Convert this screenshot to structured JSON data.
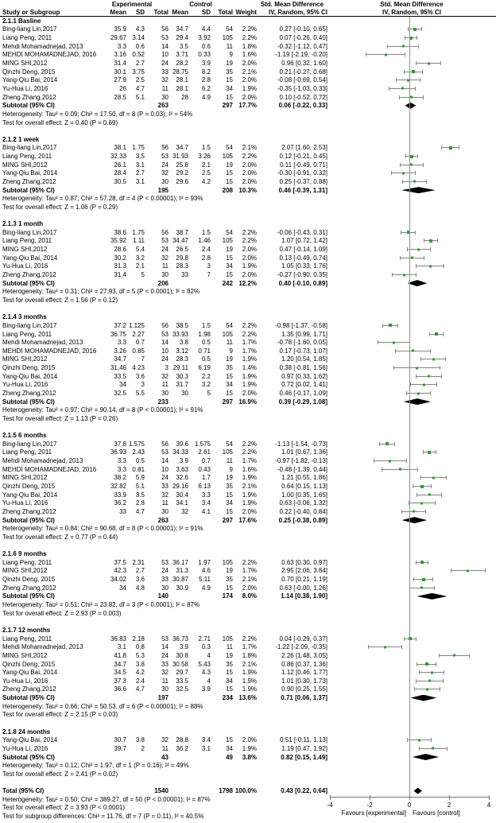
{
  "header": {
    "study": "Study or Subgroup",
    "experimental": "Experimental",
    "control": "Control",
    "mean": "Mean",
    "sd": "SD",
    "total": "Total",
    "weight": "Weight",
    "smd": "Std. Mean Difference",
    "iv_random": "IV, Random, 95% CI"
  },
  "colors": {
    "marker": "#2e9b2e",
    "ci_line": "#848484",
    "diamond": "#000000",
    "zero_line": "#909090",
    "axis": "#737373"
  },
  "chart_data": {
    "type": "forest",
    "effect_measure": "Std. Mean Difference, IV, Random, 95% CI",
    "columns": [
      "study",
      "exp_mean",
      "exp_sd",
      "exp_total",
      "ctl_mean",
      "ctl_sd",
      "ctl_total",
      "weight",
      "smd_ci"
    ],
    "axis": {
      "xlim": [
        -4,
        4
      ],
      "ticks": [
        "-4",
        "-2",
        "0",
        "2",
        "4"
      ],
      "favours_left": "Favours [experimental]",
      "favours_right": "Favours [control]"
    },
    "sections": [
      {
        "label": "2.1.1 Basline",
        "studies": [
          [
            "Bing-liang Lin,2017",
            "35.9",
            "4.3",
            "56",
            "34.7",
            "4.4",
            "54",
            "2.2%",
            "0.27 [-0.10, 0.65]"
          ],
          [
            "Liang Peng, 2011",
            "29.67",
            "3.14",
            "53",
            "29.4",
            "3.92",
            "105",
            "2.2%",
            "0.07 [-0.26, 0.40]"
          ],
          [
            "Mehdi Mohamadnejad, 2013",
            "3.3",
            "0.6",
            "14",
            "3.5",
            "0.6",
            "11",
            "1.8%",
            "-0.32 [-1.12, 0.47]"
          ],
          [
            "MEHDI MOHAMADNEJAD, 2016",
            "3.16",
            "0.52",
            "10",
            "3.71",
            "0.33",
            "9",
            "1.6%",
            "-1.19 [-2.19, -0.20]"
          ],
          [
            "MING SHI,2012",
            "31.4",
            "2.7",
            "24",
            "28.2",
            "3.9",
            "19",
            "2.0%",
            "0.96 [0.32, 1.60]"
          ],
          [
            "Qinzhi Deng, 2015",
            "30.1",
            "3.75",
            "33",
            "28.75",
            "8.2",
            "35",
            "2.1%",
            "0.21 [-0.27, 0.68]"
          ],
          [
            "Yang-Qiu Bai, 2014",
            "27.9",
            "2.5",
            "32",
            "28.1",
            "2.8",
            "15",
            "2.0%",
            "-0.08 [-0.69, 0.54]"
          ],
          [
            "Yu-Hua Li, 2016",
            "26",
            "4.7",
            "11",
            "28.1",
            "6.2",
            "34",
            "1.9%",
            "-0.35 [-1.03, 0.33]"
          ],
          [
            "Zheng Zhang,2012",
            "28.5",
            "5.1",
            "30",
            "28",
            "4.9",
            "15",
            "2.0%",
            "0.10 [-0.52, 0.72]"
          ]
        ],
        "subtotal": {
          "label": "Subtotal (95% CI)",
          "exp_total": "263",
          "ctl_total": "297",
          "weight": "17.7%",
          "ci": "0.06 [-0.22, 0.33]"
        },
        "heterogeneity": "Heterogeneity: Tau² = 0.09; Chi² = 17.50, df = 8 (P = 0.03); I² = 54%",
        "overall": "Test for overall effect: Z = 0.40 (P = 0.69)"
      },
      {
        "label": "2.1.2 1 week",
        "studies": [
          [
            "Bing-liang Lin,2017",
            "38.1",
            "1.75",
            "56",
            "34.7",
            "1.5",
            "54",
            "2.1%",
            "2.07 [1.60, 2.53]"
          ],
          [
            "Liang Peng, 2011",
            "32.33",
            "3.5",
            "53",
            "31.93",
            "3.26",
            "105",
            "2.2%",
            "0.12 [-0.21, 0.45]"
          ],
          [
            "MING SHI,2012",
            "26.1",
            "3.1",
            "24",
            "25.8",
            "2.1",
            "19",
            "2.0%",
            "0.11 [-0.49, 0.71]"
          ],
          [
            "Yang-Qiu Bai, 2014",
            "28.4",
            "2.7",
            "32",
            "29.2",
            "2.5",
            "15",
            "2.0%",
            "-0.30 [-0.91, 0.32]"
          ],
          [
            "Zheng Zhang,2012",
            "30.5",
            "3.1",
            "30",
            "29.6",
            "4.2",
            "15",
            "2.0%",
            "0.25 [-0.37, 0.88]"
          ]
        ],
        "subtotal": {
          "label": "Subtotal (95% CI)",
          "exp_total": "195",
          "ctl_total": "208",
          "weight": "10.3%",
          "ci": "0.46 [-0.39, 1.31]"
        },
        "heterogeneity": "Heterogeneity: Tau² = 0.87; Chi² = 57.28, df = 4 (P < 0.00001); I² = 93%",
        "overall": "Test for overall effect: Z = 1.06 (P = 0.29)"
      },
      {
        "label": "2.1.3 1 month",
        "studies": [
          [
            "Bing-liang Lin,2017",
            "38.6",
            "1.75",
            "56",
            "38.7",
            "1.5",
            "54",
            "2.2%",
            "-0.06 [-0.43, 0.31]"
          ],
          [
            "Liang Peng, 2011",
            "35.92",
            "1.11",
            "53",
            "34.47",
            "1.46",
            "105",
            "2.2%",
            "1.07 [0.72, 1.42]"
          ],
          [
            "MING SHI,2012",
            "28.6",
            "5.4",
            "24",
            "26.5",
            "2.4",
            "19",
            "2.0%",
            "0.47 [-0.14, 1.09]"
          ],
          [
            "Yang-Qiu Bai, 2014",
            "30.2",
            "3.2",
            "32",
            "29.8",
            "2.8",
            "15",
            "2.0%",
            "0.13 [-0.49, 0.74]"
          ],
          [
            "Yu-Hua Li, 2016",
            "31.3",
            "2.1",
            "11",
            "28.3",
            "3",
            "34",
            "1.9%",
            "1.05 [0.33, 1.76]"
          ],
          [
            "Zheng Zhang,2012",
            "31.4",
            "5",
            "30",
            "33",
            "7",
            "15",
            "2.0%",
            "-0.27 [-0.90, 0.35]"
          ]
        ],
        "subtotal": {
          "label": "Subtotal (95% CI)",
          "exp_total": "206",
          "ctl_total": "242",
          "weight": "12.2%",
          "ci": "0.40 [-0.10, 0.89]"
        },
        "heterogeneity": "Heterogeneity: Tau² = 0.31; Chi² = 27.93, df = 5 (P < 0.0001); I² = 82%",
        "overall": "Test for overall effect: Z = 1.56 (P = 0.12)"
      },
      {
        "label": "2.1.4 3 months",
        "studies": [
          [
            "Bing-liang Lin,2017",
            "37.2",
            "1.125",
            "56",
            "38.5",
            "1.5",
            "54",
            "2.2%",
            "-0.98 [-1.37, -0.58]"
          ],
          [
            "Liang Peng, 2011",
            "36.75",
            "2.27",
            "53",
            "33.93",
            "1.98",
            "105",
            "2.2%",
            "1.35 [0.99, 1.71]"
          ],
          [
            "Mehdi Mohamadnejad, 2013",
            "3.3",
            "0.7",
            "14",
            "3.8",
            "0.5",
            "11",
            "1.7%",
            "-0.78 [-1.60, 0.05]"
          ],
          [
            "MEHDI MOHAMADNEJAD, 2016",
            "3.26",
            "0.85",
            "10",
            "3.12",
            "0.71",
            "9",
            "1.7%",
            "0.17 [-0.73, 1.07]"
          ],
          [
            "MING SHI,2012",
            "34.7",
            "7",
            "24",
            "28.3",
            "0.5",
            "19",
            "1.9%",
            "1.20 [0.54, 1.85]"
          ],
          [
            "Qinzhi Deng, 2015",
            "31.46",
            "4.23",
            "3",
            "29.11",
            "6.19",
            "35",
            "1.4%",
            "0.38 [-0.81, 1.56]"
          ],
          [
            "Yang-Qiu Bai, 2014",
            "33.5",
            "3.6",
            "32",
            "30.3",
            "2.2",
            "15",
            "1.9%",
            "0.97 [0.33, 1.62]"
          ],
          [
            "Yu-Hua Li, 2016",
            "34",
            "3",
            "11",
            "31.7",
            "3.2",
            "34",
            "1.9%",
            "0.72 [0.02, 1.41]"
          ],
          [
            "Zheng Zhang,2012",
            "32.5",
            "5.5",
            "30",
            "30",
            "5",
            "15",
            "2.0%",
            "0.46 [-0.17, 1.09]"
          ]
        ],
        "subtotal": {
          "label": "Subtotal (95% CI)",
          "exp_total": "233",
          "ctl_total": "297",
          "weight": "16.9%",
          "ci": "0.39 [-0.29, 1.08]"
        },
        "heterogeneity": "Heterogeneity: Tau² = 0.97; Chi² = 90.14, df = 8 (P < 0.00001); I² = 91%",
        "overall": "Test for overall effect: Z = 1.13 (P = 0.26)"
      },
      {
        "label": "2.1.5 6 months",
        "studies": [
          [
            "Bing-liang Lin,2017",
            "37.8",
            "1.575",
            "56",
            "39.6",
            "1.575",
            "54",
            "2.2%",
            "-1.13 [-1.54, -0.73]"
          ],
          [
            "Liang Peng, 2011",
            "36.93",
            "2.43",
            "53",
            "34.33",
            "2.61",
            "105",
            "2.2%",
            "1.01 [0.67, 1.36]"
          ],
          [
            "Mehdi Mohamadnejad, 2013",
            "3.3",
            "0.5",
            "14",
            "3.9",
            "0.7",
            "11",
            "1.7%",
            "-0.97 [-1.82, -0.13]"
          ],
          [
            "MEHDI MOHAMADNEJAD, 2016",
            "3.3",
            "0.81",
            "10",
            "3.63",
            "0.43",
            "9",
            "1.6%",
            "-0.48 [-1.39, 0.44]"
          ],
          [
            "MING SHI,2012",
            "38.2",
            "5.9",
            "24",
            "32.6",
            "1.7",
            "19",
            "1.9%",
            "1.21 [0.55, 1.86]"
          ],
          [
            "Qinzhi Deng, 2015",
            "32.82",
            "5.1",
            "33",
            "29.16",
            "6.13",
            "35",
            "2.1%",
            "0.64 [0.15, 1.13]"
          ],
          [
            "Yang-Qiu Bai, 2014",
            "33.9",
            "3.5",
            "32",
            "30.4",
            "3.3",
            "15",
            "1.9%",
            "1.00 [0.35, 1.65]"
          ],
          [
            "Yu-Hua Li, 2016",
            "36.2",
            "2.8",
            "11",
            "34.1",
            "3.4",
            "34",
            "1.9%",
            "0.63 [-0.06, 1.32]"
          ],
          [
            "Zheng Zhang,2012",
            "33",
            "4.7",
            "30",
            "32",
            "4.1",
            "15",
            "2.0%",
            "0.22 [-0.40, 0.84]"
          ]
        ],
        "subtotal": {
          "label": "Subtotal (95% CI)",
          "exp_total": "263",
          "ctl_total": "297",
          "weight": "17.6%",
          "ci": "0.25 [-0.38, 0.89]"
        },
        "heterogeneity": "Heterogeneity: Tau² = 0.84; Chi² = 90.68, df = 8 (P < 0.00001); I² = 91%",
        "overall": "Test for overall effect: Z = 0.77 (P = 0.44)"
      },
      {
        "label": "2.1.6 9 months",
        "studies": [
          [
            "Liang Peng, 2011",
            "37.5",
            "2.31",
            "53",
            "36.17",
            "1.97",
            "105",
            "2.2%",
            "0.63 [0.30, 0.97]"
          ],
          [
            "MING SHI,2012",
            "42.3",
            "2.7",
            "24",
            "31.3",
            "4.6",
            "19",
            "1.7%",
            "2.95 [2.06, 3.84]"
          ],
          [
            "Qinzhi Deng, 2015",
            "34.02",
            "3.6",
            "33",
            "30.87",
            "5.11",
            "35",
            "2.1%",
            "0.70 [0.21, 1.19]"
          ],
          [
            "Zheng Zhang,2012",
            "34",
            "4.8",
            "30",
            "30.9",
            "4.9",
            "15",
            "2.0%",
            "0.63 [-0.00, 1.26]"
          ]
        ],
        "subtotal": {
          "label": "Subtotal (95% CI)",
          "exp_total": "140",
          "ctl_total": "174",
          "weight": "8.0%",
          "ci": "1.14 [0.38, 1.90]"
        },
        "heterogeneity": "Heterogeneity: Tau² = 0.51; Chi² = 23.82, df = 3 (P < 0.0001); I² = 87%",
        "overall": "Test for overall effect: Z = 2.93 (P = 0.003)"
      },
      {
        "label": "2.1.7 12 months",
        "studies": [
          [
            "Liang Peng, 2011",
            "36.83",
            "2.18",
            "53",
            "36.73",
            "2.71",
            "105",
            "2.2%",
            "0.04 [-0.29, 0.37]"
          ],
          [
            "Mehdi Mohamadnejad, 2013",
            "3.1",
            "0.8",
            "14",
            "3.9",
            "0.3",
            "11",
            "1.7%",
            "-1.22 [-2.09, -0.35]"
          ],
          [
            "MING SHI,2012",
            "41.8",
            "5.3",
            "24",
            "30.8",
            "4",
            "19",
            "1.8%",
            "2.26 [1.48, 3.05]"
          ],
          [
            "Qinzhi Deng, 2015",
            "34.7",
            "3.8",
            "33",
            "30.58",
            "5.43",
            "35",
            "2.1%",
            "0.86 [0.37, 1.36]"
          ],
          [
            "Yang-Qiu Bai, 2014",
            "34.5",
            "4.2",
            "32",
            "29.7",
            "4.3",
            "15",
            "1.9%",
            "1.12 [0.46, 1.77]"
          ],
          [
            "Yu-Hua Li, 2016",
            "37.3",
            "2.4",
            "11",
            "33.5",
            "4",
            "34",
            "1.9%",
            "1.01 [0.30, 1.73]"
          ],
          [
            "Zheng Zhang,2012",
            "36.6",
            "4.7",
            "30",
            "32.5",
            "3.9",
            "15",
            "1.9%",
            "0.90 [0.25, 1.55]"
          ]
        ],
        "subtotal": {
          "label": "Subtotal (95% CI)",
          "exp_total": "197",
          "ctl_total": "234",
          "weight": "13.6%",
          "ci": "0.71 [0.06, 1.37]"
        },
        "heterogeneity": "Heterogeneity: Tau² = 0.66; Chi² = 50.53, df = 6 (P < 0.00001); I² = 88%",
        "overall": "Test for overall effect: Z = 2.15 (P = 0.03)"
      },
      {
        "label": "2.1.8 24 months",
        "studies": [
          [
            "Yang-Qiu Bai, 2014",
            "30.7",
            "3.8",
            "32",
            "28.8",
            "3.4",
            "15",
            "2.0%",
            "0.51 [-0.11, 1.13]"
          ],
          [
            "Yu-Hua Li, 2016",
            "39.7",
            "2",
            "11",
            "36.2",
            "3.1",
            "34",
            "1.9%",
            "1.19 [0.47, 1.92]"
          ]
        ],
        "subtotal": {
          "label": "Subtotal (95% CI)",
          "exp_total": "43",
          "ctl_total": "49",
          "weight": "3.8%",
          "ci": "0.82 [0.15, 1.49]"
        },
        "heterogeneity": "Heterogeneity: Tau² = 0.12; Chi² = 1.97, df = 1 (P = 0.16); I² = 49%",
        "overall": "Test for overall effect: Z = 2.41 (P = 0.02)"
      }
    ],
    "total": {
      "label": "Total (95% CI)",
      "exp_total": "1540",
      "ctl_total": "1798",
      "weight": "100.0%",
      "ci": "0.43 [0.22, 0.64]",
      "heterogeneity": "Heterogeneity: Tau² = 0.50; Chi² = 389.27, df = 50 (P < 0.00001); I² = 87%",
      "overall": "Test for overall effect: Z = 3.93 (P < 0.0001)",
      "subgroup_differences": "Test for subgroup differences: Chi² = 11.76, df = 7 (P = 0.11), I² = 40.5%"
    }
  }
}
